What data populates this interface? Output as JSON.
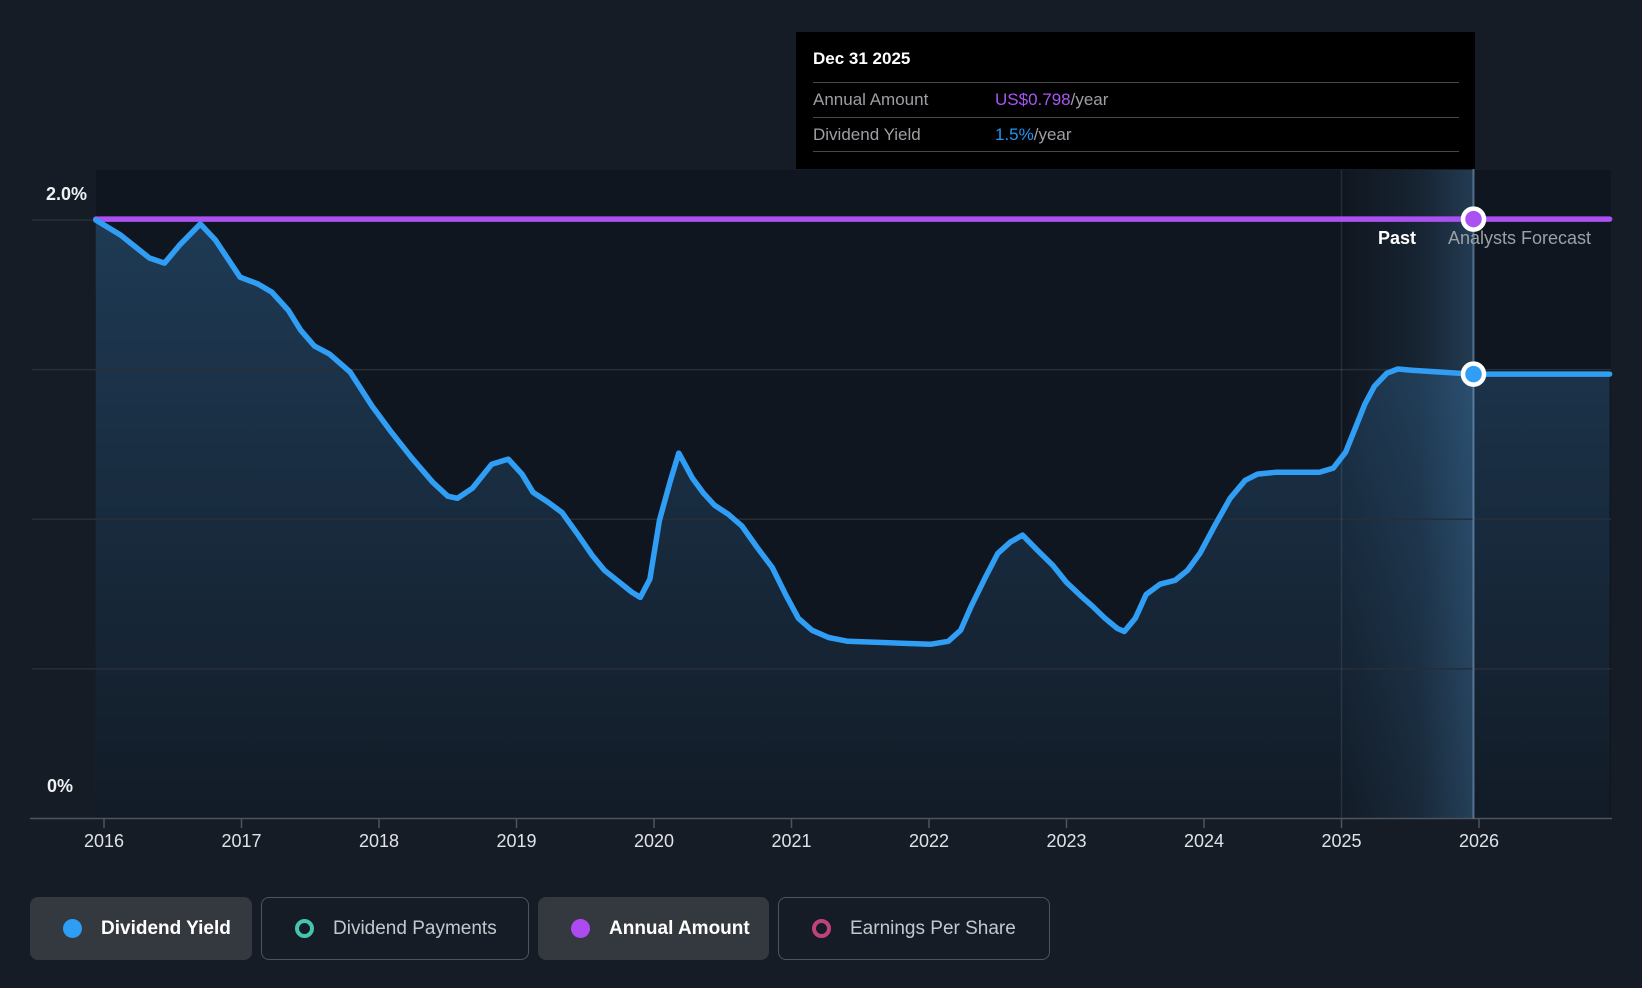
{
  "y_axis": {
    "top_label": "2.0%",
    "bottom_label": "0%"
  },
  "x_axis": {
    "years": [
      "2016",
      "2017",
      "2018",
      "2019",
      "2020",
      "2021",
      "2022",
      "2023",
      "2024",
      "2025",
      "2026"
    ]
  },
  "period_labels": {
    "past": "Past",
    "forecast": "Analysts Forecast"
  },
  "tooltip": {
    "date": "Dec 31 2025",
    "rows": [
      {
        "label": "Annual Amount",
        "value": "US$0.798",
        "suffix": "/year",
        "color": "#a855f5"
      },
      {
        "label": "Dividend Yield",
        "value": "1.5%",
        "suffix": "/year",
        "color": "#2196f3"
      }
    ]
  },
  "legend": {
    "items": [
      {
        "label": "Dividend Yield",
        "style": "filled",
        "marker": "dot",
        "color": "#2e9df4"
      },
      {
        "label": "Dividend Payments",
        "style": "outlined",
        "marker": "ring",
        "color": "#45c4ae"
      },
      {
        "label": "Annual Amount",
        "style": "filled",
        "marker": "dot",
        "color": "#ad4bf2"
      },
      {
        "label": "Earnings Per Share",
        "style": "outlined",
        "marker": "ring",
        "color": "#c0427c"
      }
    ],
    "chip_widths": [
      222,
      268,
      231,
      272
    ]
  },
  "colors": {
    "page_bg": "#161c26",
    "plot_bg": "#10161f",
    "yield_line": "#2f9ef4",
    "annual_line": "#ab51f1",
    "gridline": "#272e38",
    "axis": "#4d545e",
    "crosshair": "rgba(130,170,210,0.55)",
    "tooltip_bg": "#000000"
  },
  "chart_data": {
    "type": "line",
    "title": "Dividend history and forecast",
    "x_ticks": [
      2016,
      2017,
      2018,
      2019,
      2020,
      2021,
      2022,
      2023,
      2024,
      2025,
      2026
    ],
    "ylim": [
      0,
      2.0
    ],
    "y_gridlines_pct": [
      0.5,
      1.0,
      1.5,
      2.0
    ],
    "grid": true,
    "legend_position": "bottom",
    "past_forecast": {
      "boundary_year": 2025.0,
      "crosshair_year": 2025.96,
      "past_label": "Past",
      "forecast_label": "Analysts Forecast"
    },
    "series": [
      {
        "name": "Dividend Yield",
        "type": "line+area",
        "unit": "%",
        "color": "#2f9ef4",
        "points": [
          [
            2015.94,
            2.0
          ],
          [
            2016.12,
            1.95
          ],
          [
            2016.33,
            1.873
          ],
          [
            2016.44,
            1.856
          ],
          [
            2016.55,
            1.916
          ],
          [
            2016.7,
            1.987
          ],
          [
            2016.81,
            1.933
          ],
          [
            2016.99,
            1.809
          ],
          [
            2017.12,
            1.786
          ],
          [
            2017.22,
            1.759
          ],
          [
            2017.34,
            1.699
          ],
          [
            2017.43,
            1.632
          ],
          [
            2017.53,
            1.579
          ],
          [
            2017.64,
            1.552
          ],
          [
            2017.79,
            1.492
          ],
          [
            2017.95,
            1.378
          ],
          [
            2018.09,
            1.291
          ],
          [
            2018.24,
            1.204
          ],
          [
            2018.39,
            1.124
          ],
          [
            2018.5,
            1.077
          ],
          [
            2018.57,
            1.07
          ],
          [
            2018.68,
            1.104
          ],
          [
            2018.82,
            1.184
          ],
          [
            2018.94,
            1.201
          ],
          [
            2019.04,
            1.151
          ],
          [
            2019.12,
            1.09
          ],
          [
            2019.23,
            1.057
          ],
          [
            2019.33,
            1.023
          ],
          [
            2019.44,
            0.953
          ],
          [
            2019.55,
            0.88
          ],
          [
            2019.64,
            0.829
          ],
          [
            2019.75,
            0.789
          ],
          [
            2019.84,
            0.756
          ],
          [
            2019.9,
            0.739
          ],
          [
            2019.97,
            0.8
          ],
          [
            2020.04,
            0.997
          ],
          [
            2020.12,
            1.13
          ],
          [
            2020.18,
            1.221
          ],
          [
            2020.28,
            1.137
          ],
          [
            2020.36,
            1.087
          ],
          [
            2020.44,
            1.047
          ],
          [
            2020.54,
            1.017
          ],
          [
            2020.64,
            0.977
          ],
          [
            2020.75,
            0.906
          ],
          [
            2020.86,
            0.839
          ],
          [
            2020.96,
            0.746
          ],
          [
            2021.05,
            0.669
          ],
          [
            2021.15,
            0.629
          ],
          [
            2021.27,
            0.605
          ],
          [
            2021.41,
            0.592
          ],
          [
            2021.61,
            0.589
          ],
          [
            2021.83,
            0.585
          ],
          [
            2022.01,
            0.582
          ],
          [
            2022.14,
            0.592
          ],
          [
            2022.23,
            0.629
          ],
          [
            2022.31,
            0.712
          ],
          [
            2022.41,
            0.806
          ],
          [
            2022.5,
            0.886
          ],
          [
            2022.59,
            0.923
          ],
          [
            2022.68,
            0.947
          ],
          [
            2022.79,
            0.896
          ],
          [
            2022.9,
            0.846
          ],
          [
            2023.0,
            0.789
          ],
          [
            2023.1,
            0.746
          ],
          [
            2023.19,
            0.709
          ],
          [
            2023.28,
            0.669
          ],
          [
            2023.37,
            0.635
          ],
          [
            2023.42,
            0.625
          ],
          [
            2023.5,
            0.669
          ],
          [
            2023.58,
            0.749
          ],
          [
            2023.68,
            0.783
          ],
          [
            2023.79,
            0.796
          ],
          [
            2023.88,
            0.829
          ],
          [
            2023.97,
            0.886
          ],
          [
            2024.08,
            0.98
          ],
          [
            2024.19,
            1.07
          ],
          [
            2024.3,
            1.13
          ],
          [
            2024.39,
            1.151
          ],
          [
            2024.52,
            1.157
          ],
          [
            2024.7,
            1.157
          ],
          [
            2024.84,
            1.157
          ],
          [
            2024.94,
            1.171
          ],
          [
            2025.03,
            1.224
          ],
          [
            2025.1,
            1.304
          ],
          [
            2025.17,
            1.385
          ],
          [
            2025.24,
            1.445
          ],
          [
            2025.33,
            1.488
          ],
          [
            2025.41,
            1.502
          ],
          [
            2025.51,
            1.498
          ],
          [
            2025.71,
            1.492
          ],
          [
            2025.96,
            1.485
          ],
          [
            2026.95,
            1.485
          ]
        ]
      },
      {
        "name": "Annual Amount",
        "type": "line",
        "unit": "US$/year",
        "color": "#ab51f1",
        "value_label": "US$0.798/year",
        "points": [
          [
            2015.94,
            2.003
          ],
          [
            2026.95,
            2.003
          ]
        ]
      }
    ],
    "markers": [
      {
        "series": "Annual Amount",
        "year": 2025.96,
        "value_pct": 2.003,
        "color": "#ab51f1"
      },
      {
        "series": "Dividend Yield",
        "year": 2025.96,
        "value_pct": 1.485,
        "color": "#2f9ef4"
      }
    ]
  }
}
